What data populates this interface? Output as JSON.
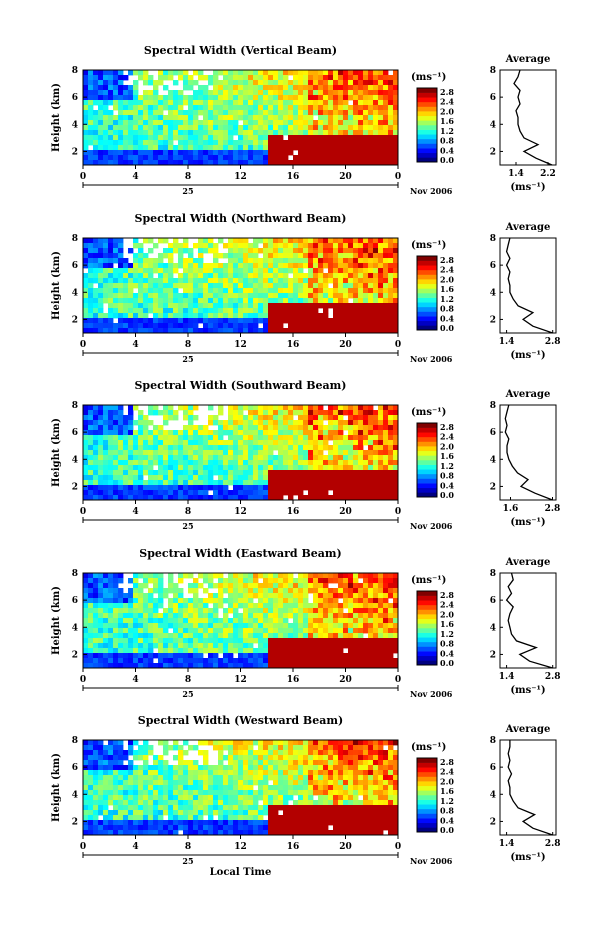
{
  "chart_data": [
    {
      "type": "heatmap",
      "title": "Spectral Width (Vertical Beam)",
      "ylabel": "Height (km)",
      "yticks": [
        "2",
        "4",
        "6",
        "8"
      ],
      "xticks": [
        "0",
        "4",
        "8",
        "12",
        "16",
        "20",
        "0"
      ],
      "date_day": "25",
      "date_label": "Nov 2006",
      "colorbar": {
        "unit": "(ms⁻¹)",
        "ticks": [
          "0.0",
          "0.4",
          "0.8",
          "1.2",
          "1.6",
          "2.0",
          "2.4",
          "2.8"
        ]
      },
      "profile": {
        "title": "Average",
        "yticks": [
          "2",
          "4",
          "6",
          "8"
        ],
        "xticks": [
          "1.4",
          "2.2"
        ],
        "xlabel": "(ms⁻¹)",
        "xlim": [
          1.0,
          2.4
        ],
        "heights": [
          1.0,
          1.5,
          2.0,
          2.5,
          3.0,
          3.5,
          4.0,
          4.5,
          5.0,
          5.5,
          6.0,
          6.5,
          7.0,
          7.5,
          8.0
        ],
        "values": [
          2.3,
          1.9,
          1.6,
          1.95,
          1.6,
          1.5,
          1.45,
          1.45,
          1.4,
          1.5,
          1.45,
          1.5,
          1.35,
          1.45,
          1.5
        ]
      }
    },
    {
      "type": "heatmap",
      "title": "Spectral Width (Northward Beam)",
      "ylabel": "Height (km)",
      "yticks": [
        "2",
        "4",
        "6",
        "8"
      ],
      "xticks": [
        "0",
        "4",
        "8",
        "12",
        "16",
        "20",
        "0"
      ],
      "date_day": "25",
      "date_label": "Nov 2006",
      "colorbar": {
        "unit": "(ms⁻¹)",
        "ticks": [
          "0.0",
          "0.4",
          "0.8",
          "1.2",
          "1.6",
          "2.0",
          "2.4",
          "2.8"
        ]
      },
      "profile": {
        "title": "Average",
        "yticks": [
          "2",
          "4",
          "6",
          "8"
        ],
        "xticks": [
          "1.4",
          "2.8"
        ],
        "xlabel": "(ms⁻¹)",
        "xlim": [
          1.2,
          2.9
        ],
        "heights": [
          1.0,
          1.5,
          2.0,
          2.5,
          3.0,
          3.5,
          4.0,
          4.5,
          5.0,
          5.5,
          6.0,
          6.5,
          7.0,
          7.5,
          8.0
        ],
        "values": [
          2.8,
          2.2,
          1.9,
          2.2,
          1.75,
          1.6,
          1.5,
          1.5,
          1.45,
          1.5,
          1.4,
          1.5,
          1.4,
          1.45,
          1.5
        ]
      }
    },
    {
      "type": "heatmap",
      "title": "Spectral Width (Southward Beam)",
      "ylabel": "Height (km)",
      "yticks": [
        "2",
        "4",
        "6",
        "8"
      ],
      "xticks": [
        "0",
        "4",
        "8",
        "12",
        "16",
        "20",
        "0"
      ],
      "date_day": "25",
      "date_label": "Nov 2006",
      "colorbar": {
        "unit": "(ms⁻¹)",
        "ticks": [
          "0.0",
          "0.4",
          "0.8",
          "1.2",
          "1.6",
          "2.0",
          "2.4",
          "2.8"
        ]
      },
      "profile": {
        "title": "Average",
        "yticks": [
          "2",
          "4",
          "6",
          "8"
        ],
        "xticks": [
          "1.6",
          "2.8"
        ],
        "xlabel": "(ms⁻¹)",
        "xlim": [
          1.3,
          2.9
        ],
        "heights": [
          1.0,
          1.5,
          2.0,
          2.5,
          3.0,
          3.5,
          4.0,
          4.5,
          5.0,
          5.5,
          6.0,
          6.5,
          7.0,
          7.5,
          8.0
        ],
        "values": [
          2.8,
          2.3,
          1.9,
          2.1,
          1.8,
          1.65,
          1.55,
          1.5,
          1.5,
          1.55,
          1.45,
          1.5,
          1.45,
          1.5,
          1.55
        ]
      }
    },
    {
      "type": "heatmap",
      "title": "Spectral Width (Eastward Beam)",
      "ylabel": "Height (km)",
      "yticks": [
        "2",
        "4",
        "6",
        "8"
      ],
      "xticks": [
        "0",
        "4",
        "8",
        "12",
        "16",
        "20",
        "0"
      ],
      "date_day": "25",
      "date_label": "Nov 2006",
      "colorbar": {
        "unit": "(ms⁻¹)",
        "ticks": [
          "0.0",
          "0.4",
          "0.8",
          "1.2",
          "1.6",
          "2.0",
          "2.4",
          "2.8"
        ]
      },
      "profile": {
        "title": "Average",
        "yticks": [
          "2",
          "4",
          "6",
          "8"
        ],
        "xticks": [
          "1.4",
          "2.8"
        ],
        "xlabel": "(ms⁻¹)",
        "xlim": [
          1.2,
          2.9
        ],
        "heights": [
          1.0,
          1.5,
          2.0,
          2.5,
          3.0,
          3.5,
          4.0,
          4.5,
          5.0,
          5.5,
          6.0,
          6.5,
          7.0,
          7.5,
          8.0
        ],
        "values": [
          2.8,
          2.1,
          1.8,
          2.3,
          1.7,
          1.55,
          1.5,
          1.45,
          1.5,
          1.6,
          1.4,
          1.55,
          1.45,
          1.6,
          1.55
        ]
      }
    },
    {
      "type": "heatmap",
      "title": "Spectral Width (Westward Beam)",
      "ylabel": "Height (km)",
      "xlabel": "Local Time",
      "yticks": [
        "2",
        "4",
        "6",
        "8"
      ],
      "xticks": [
        "0",
        "4",
        "8",
        "12",
        "16",
        "20",
        "0"
      ],
      "date_day": "25",
      "date_label": "Nov 2006",
      "colorbar": {
        "unit": "(ms⁻¹)",
        "ticks": [
          "0.0",
          "0.4",
          "0.8",
          "1.2",
          "1.6",
          "2.0",
          "2.4",
          "2.8"
        ]
      },
      "profile": {
        "title": "Average",
        "yticks": [
          "2",
          "4",
          "6",
          "8"
        ],
        "xticks": [
          "1.4",
          "2.8"
        ],
        "xlabel": "(ms⁻¹)",
        "xlim": [
          1.2,
          2.9
        ],
        "heights": [
          1.0,
          1.5,
          2.0,
          2.5,
          3.0,
          3.5,
          4.0,
          4.5,
          5.0,
          5.5,
          6.0,
          6.5,
          7.0,
          7.5,
          8.0
        ],
        "values": [
          2.8,
          2.2,
          1.9,
          2.25,
          1.75,
          1.6,
          1.5,
          1.5,
          1.45,
          1.55,
          1.45,
          1.5,
          1.45,
          1.5,
          1.5
        ]
      }
    }
  ]
}
